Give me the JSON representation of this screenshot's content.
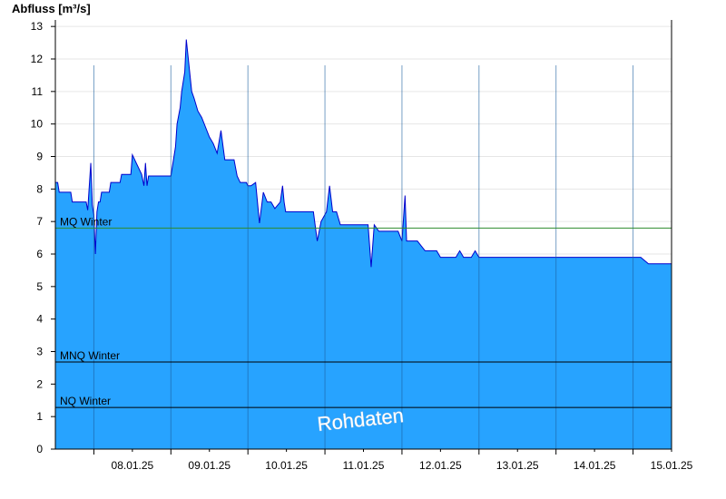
{
  "chart_data": {
    "type": "area",
    "title": "",
    "ylabel": "Abfluss [m³/s]",
    "xlabel": "",
    "ylim": [
      0,
      13.2
    ],
    "yticks": [
      0,
      1,
      2,
      3,
      4,
      5,
      6,
      7,
      8,
      9,
      10,
      11,
      12,
      13
    ],
    "xlim": [
      7.5,
      15.5
    ],
    "xtick_labels": [
      "08.01.25",
      "09.01.25",
      "10.01.25",
      "11.01.25",
      "12.01.25",
      "13.01.25",
      "14.01.25",
      "15.01.25"
    ],
    "day_separators": [
      8.0,
      9.0,
      10.0,
      11.0,
      12.0,
      13.0,
      14.0,
      15.0
    ],
    "grid": "horizontal",
    "colors": {
      "fill": "#27a3ff",
      "line": "#0000cc",
      "mq": "#2e8b2e",
      "ref": "#000000",
      "grid": "#e6e6e6"
    },
    "reference_lines": [
      {
        "label": "MQ Winter",
        "value": 6.8,
        "color": "#2e8b2e"
      },
      {
        "label": "MNQ Winter",
        "value": 2.68,
        "color": "#000000"
      },
      {
        "label": "NQ Winter",
        "value": 1.28,
        "color": "#000000"
      }
    ],
    "watermark": "Rohdaten",
    "series": [
      {
        "x": [
          7.5,
          7.53,
          7.55,
          7.7,
          7.72,
          7.9,
          7.92,
          7.96,
          7.98,
          8.0,
          8.02,
          8.04,
          8.06,
          8.08,
          8.1,
          8.2,
          8.22,
          8.28,
          8.3,
          8.34,
          8.36,
          8.48,
          8.5,
          8.62,
          8.65,
          8.67,
          8.69,
          8.71,
          8.73,
          8.8,
          8.98,
          9.0,
          9.04,
          9.06,
          9.08,
          9.12,
          9.14,
          9.18,
          9.2,
          9.27,
          9.3,
          9.35,
          9.4,
          9.45,
          9.5,
          9.55,
          9.6,
          9.65,
          9.7,
          9.75,
          9.82,
          9.86,
          9.9,
          9.94,
          9.96,
          9.98,
          10.0,
          10.02,
          10.04,
          10.1,
          10.15,
          10.2,
          10.25,
          10.3,
          10.35,
          10.42,
          10.45,
          10.47,
          10.49,
          10.6,
          10.65,
          10.75,
          10.85,
          10.9,
          10.95,
          11.02,
          11.06,
          11.1,
          11.15,
          11.2,
          11.22,
          11.24,
          11.26,
          11.3,
          11.32,
          11.4,
          11.46,
          11.48,
          11.52,
          11.56,
          11.6,
          11.64,
          11.7,
          11.75,
          11.85,
          11.9,
          11.95,
          12.0,
          12.04,
          12.06,
          12.08,
          12.1,
          12.2,
          12.3,
          12.38,
          12.4,
          12.45,
          12.5,
          12.6,
          12.7,
          12.75,
          12.8,
          12.85,
          12.9,
          12.95,
          13.0,
          13.1,
          13.2,
          13.3,
          13.4,
          13.5,
          13.55,
          13.6,
          13.65,
          13.7,
          13.75,
          13.8,
          14.0,
          14.2,
          14.4,
          14.48,
          14.5,
          14.55,
          14.6,
          14.8,
          14.95,
          14.98,
          15.0,
          15.02,
          15.1,
          15.2,
          15.4,
          15.45,
          15.47,
          15.49,
          15.5
        ],
        "y": [
          8.2,
          8.2,
          7.9,
          7.9,
          7.6,
          7.6,
          7.35,
          8.8,
          7.5,
          7.2,
          6.0,
          7.3,
          7.6,
          7.6,
          7.9,
          7.9,
          8.2,
          8.2,
          8.2,
          8.2,
          8.45,
          8.45,
          9.05,
          8.45,
          8.1,
          8.8,
          8.1,
          8.4,
          8.4,
          8.4,
          8.4,
          8.4,
          9.0,
          9.3,
          10.0,
          10.5,
          11.0,
          11.6,
          12.6,
          11.0,
          10.8,
          10.4,
          10.2,
          9.9,
          9.6,
          9.4,
          9.1,
          9.8,
          8.9,
          8.9,
          8.9,
          8.4,
          8.2,
          8.2,
          8.2,
          8.2,
          8.1,
          8.1,
          8.1,
          8.2,
          6.95,
          7.9,
          7.6,
          7.6,
          7.4,
          7.6,
          8.1,
          7.6,
          7.3,
          7.3,
          7.3,
          7.3,
          7.3,
          6.4,
          7.0,
          7.3,
          8.1,
          7.3,
          7.3,
          6.9,
          6.9,
          6.9,
          6.9,
          6.9,
          6.9,
          6.9,
          6.9,
          6.9,
          6.9,
          6.9,
          5.6,
          6.9,
          6.7,
          6.7,
          6.7,
          6.7,
          6.7,
          6.4,
          7.8,
          6.4,
          6.4,
          6.4,
          6.4,
          6.1,
          6.1,
          6.1,
          6.1,
          5.9,
          5.9,
          5.9,
          6.1,
          5.9,
          5.9,
          5.9,
          6.1,
          5.9,
          5.9,
          5.9,
          5.9,
          5.9,
          5.9,
          5.9,
          5.9,
          5.9,
          5.9,
          5.9,
          5.9,
          5.9,
          5.9,
          5.9,
          5.9,
          5.9,
          5.9,
          5.9,
          5.9,
          5.9,
          5.9,
          5.9,
          5.9,
          5.9,
          5.7,
          5.7,
          5.7,
          5.7,
          5.7,
          5.7
        ]
      }
    ]
  }
}
